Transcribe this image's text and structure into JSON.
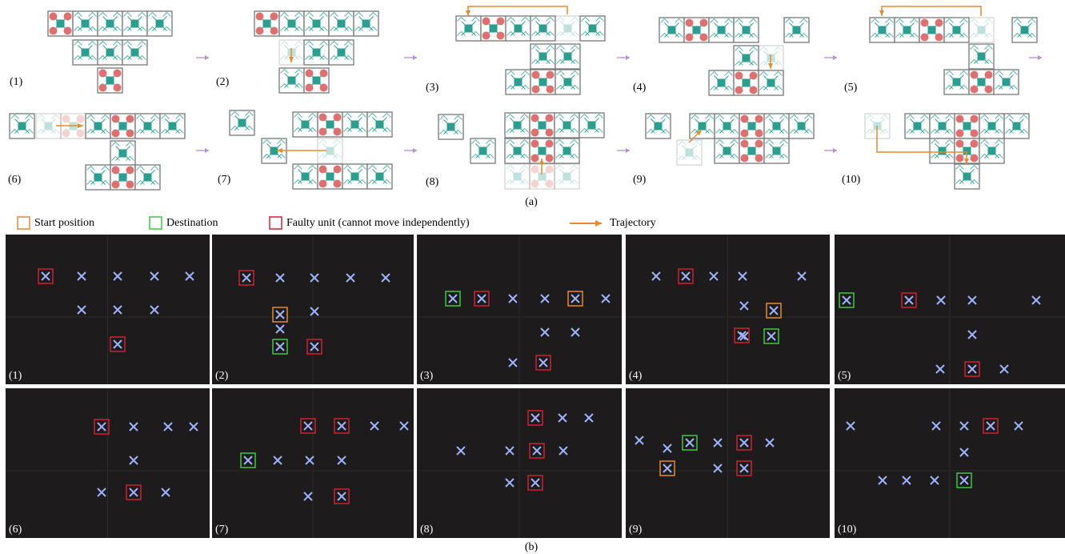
{
  "panel_a": {
    "labels": [
      "(1)",
      "(2)",
      "(3)",
      "(4)",
      "(5)",
      "(6)",
      "(7)",
      "(8)",
      "(9)",
      "(10)"
    ],
    "caption": "(a)"
  },
  "legend": [
    "Start position",
    "Destination",
    "Faulty unit (cannot move independently)",
    "Trajectory"
  ],
  "panel_b": {
    "labels": [
      "(1)",
      "(2)",
      "(3)",
      "(4)",
      "(5)",
      "(6)",
      "(7)",
      "(8)",
      "(9)",
      "(10)"
    ],
    "caption": "(b)"
  }
}
